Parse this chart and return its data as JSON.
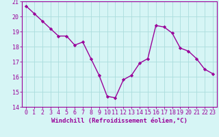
{
  "x": [
    0,
    1,
    2,
    3,
    4,
    5,
    6,
    7,
    8,
    9,
    10,
    11,
    12,
    13,
    14,
    15,
    16,
    17,
    18,
    19,
    20,
    21,
    22,
    23
  ],
  "y": [
    20.7,
    20.2,
    19.7,
    19.2,
    18.7,
    18.7,
    18.1,
    18.3,
    17.2,
    16.1,
    14.7,
    14.6,
    15.8,
    16.1,
    16.9,
    17.2,
    19.4,
    19.3,
    18.9,
    17.9,
    17.7,
    17.2,
    16.5,
    16.2
  ],
  "line_color": "#990099",
  "marker": "D",
  "marker_size": 2.2,
  "bg_color": "#d6f5f5",
  "grid_color": "#aadddd",
  "xlabel": "Windchill (Refroidissement éolien,°C)",
  "ylabel": "",
  "xlim": [
    -0.5,
    23.5
  ],
  "ylim": [
    14,
    21
  ],
  "xticks": [
    0,
    1,
    2,
    3,
    4,
    5,
    6,
    7,
    8,
    9,
    10,
    11,
    12,
    13,
    14,
    15,
    16,
    17,
    18,
    19,
    20,
    21,
    22,
    23
  ],
  "yticks": [
    14,
    15,
    16,
    17,
    18,
    19,
    20,
    21
  ],
  "tick_color": "#990099",
  "label_color": "#990099",
  "axis_color": "#990099",
  "xlabel_fontsize": 6.5,
  "tick_fontsize": 6.0,
  "linewidth": 1.0
}
